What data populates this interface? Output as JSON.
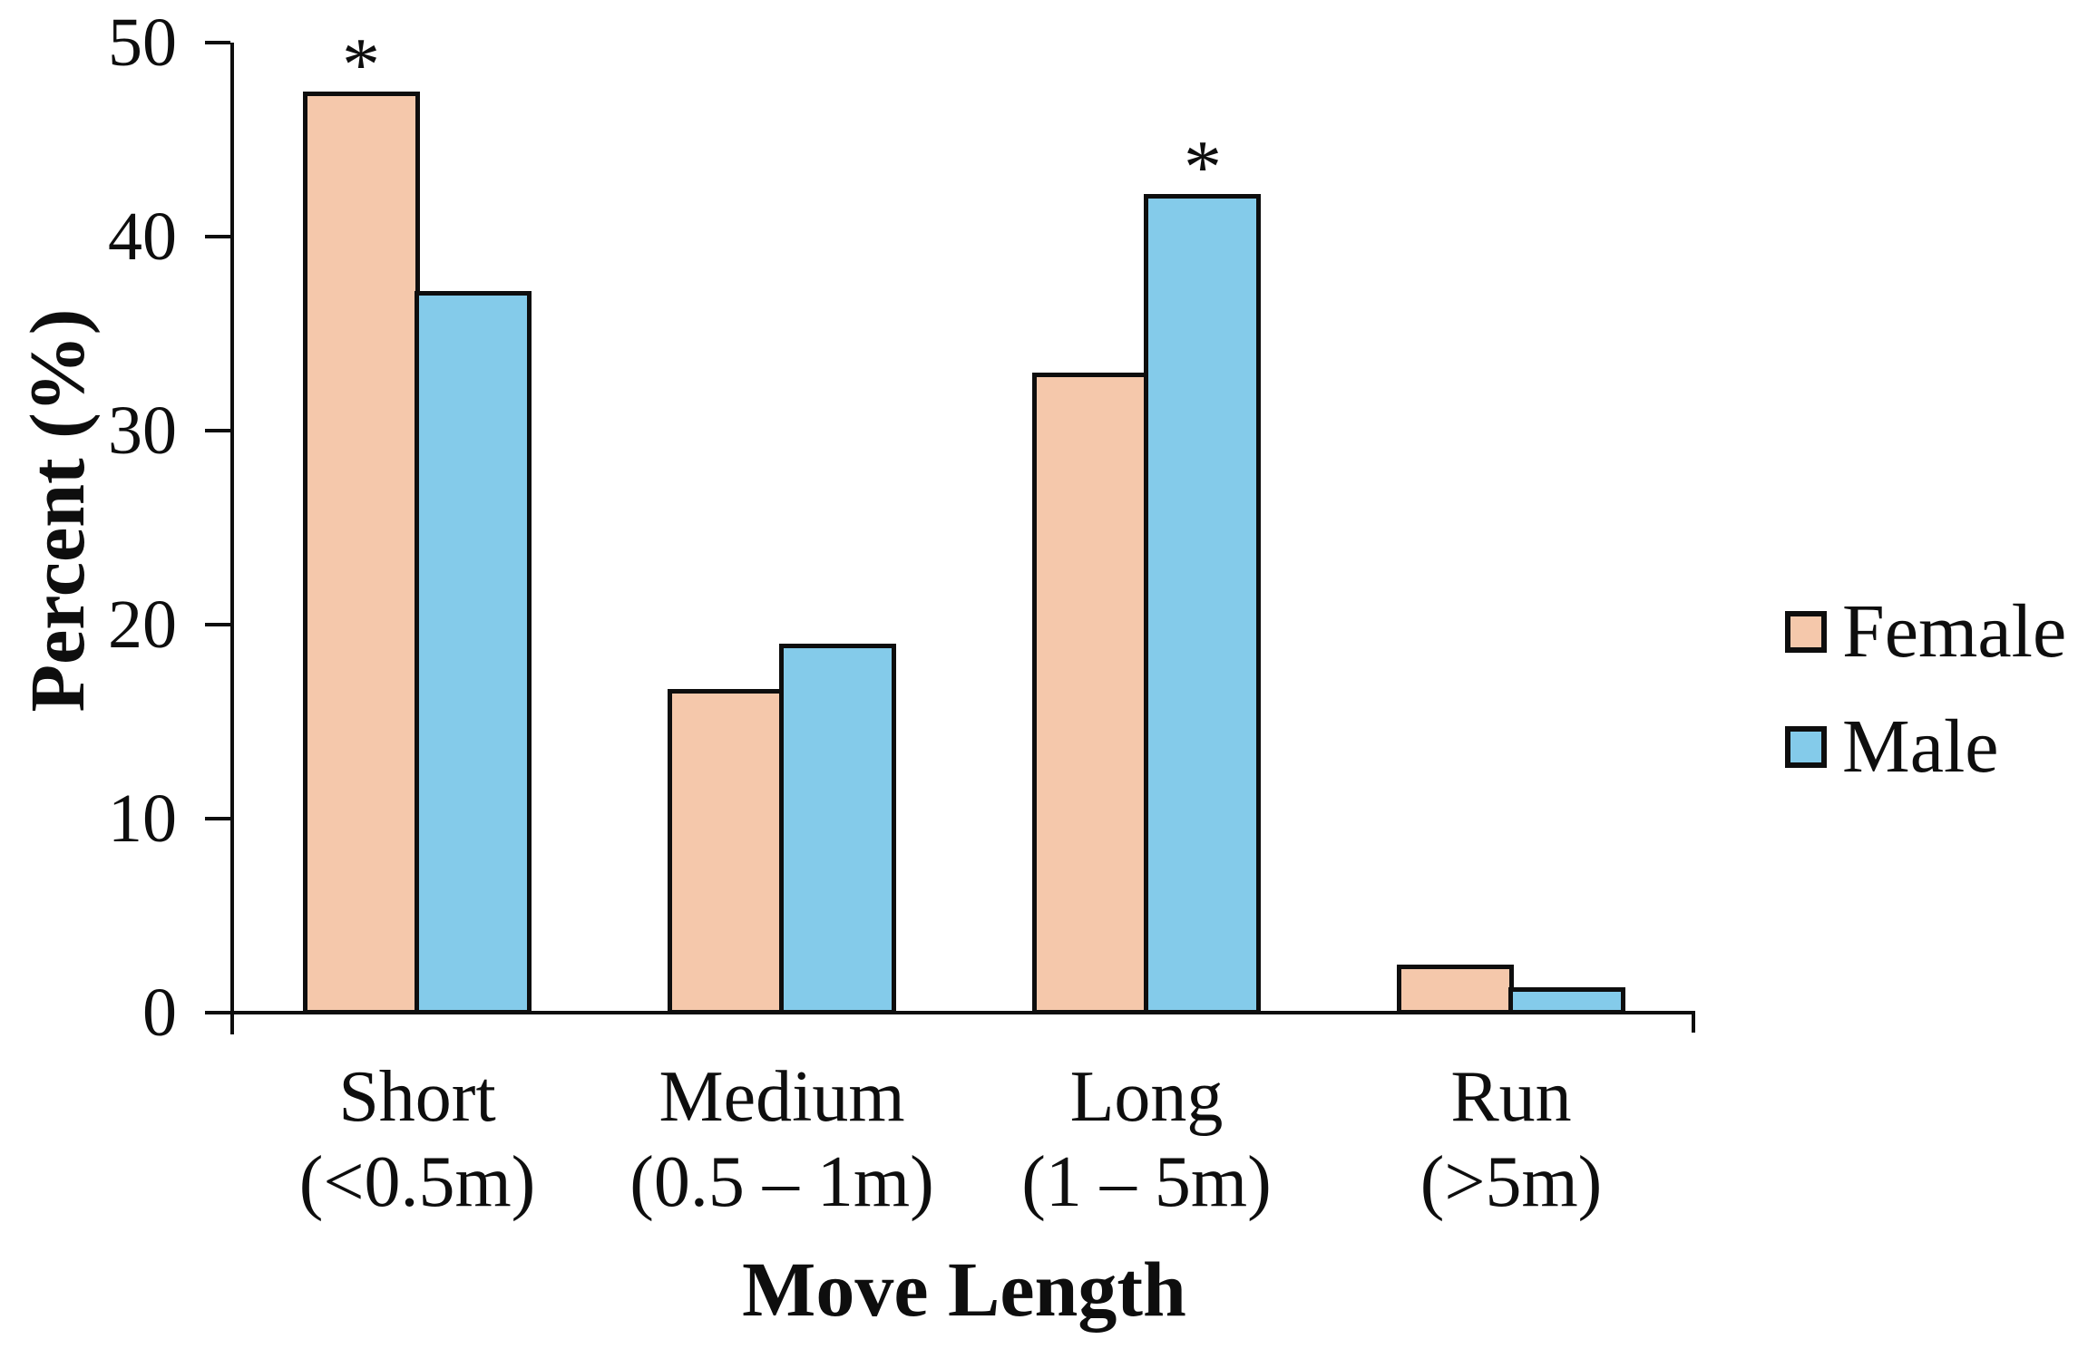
{
  "chart_data": {
    "type": "bar",
    "title": "",
    "xlabel": "Move Length",
    "ylabel": "Percent (%)",
    "ylim": [
      0,
      50
    ],
    "yticks": [
      0,
      10,
      20,
      30,
      40,
      50
    ],
    "grid": false,
    "legend_position": "right-middle",
    "background_color": "#ffffff",
    "axis_color": "#0e0e0e",
    "categories": [
      {
        "label": "Short",
        "sublabel": "(<0.5m)"
      },
      {
        "label": "Medium",
        "sublabel": "(0.5 – 1m)"
      },
      {
        "label": "Long",
        "sublabel": "(1 – 5m)"
      },
      {
        "label": "Run",
        "sublabel": "(>5m)"
      }
    ],
    "series": [
      {
        "name": "Female",
        "color": "#F5C8AB",
        "values": [
          47.5,
          16.7,
          33.0,
          2.5
        ]
      },
      {
        "name": "Male",
        "color": "#84CBEA",
        "values": [
          37.2,
          19.0,
          42.2,
          1.3
        ]
      }
    ],
    "annotations": [
      {
        "symbol": "*",
        "category": "Short",
        "series": "Female"
      },
      {
        "symbol": "*",
        "category": "Long",
        "series": "Male"
      }
    ]
  }
}
